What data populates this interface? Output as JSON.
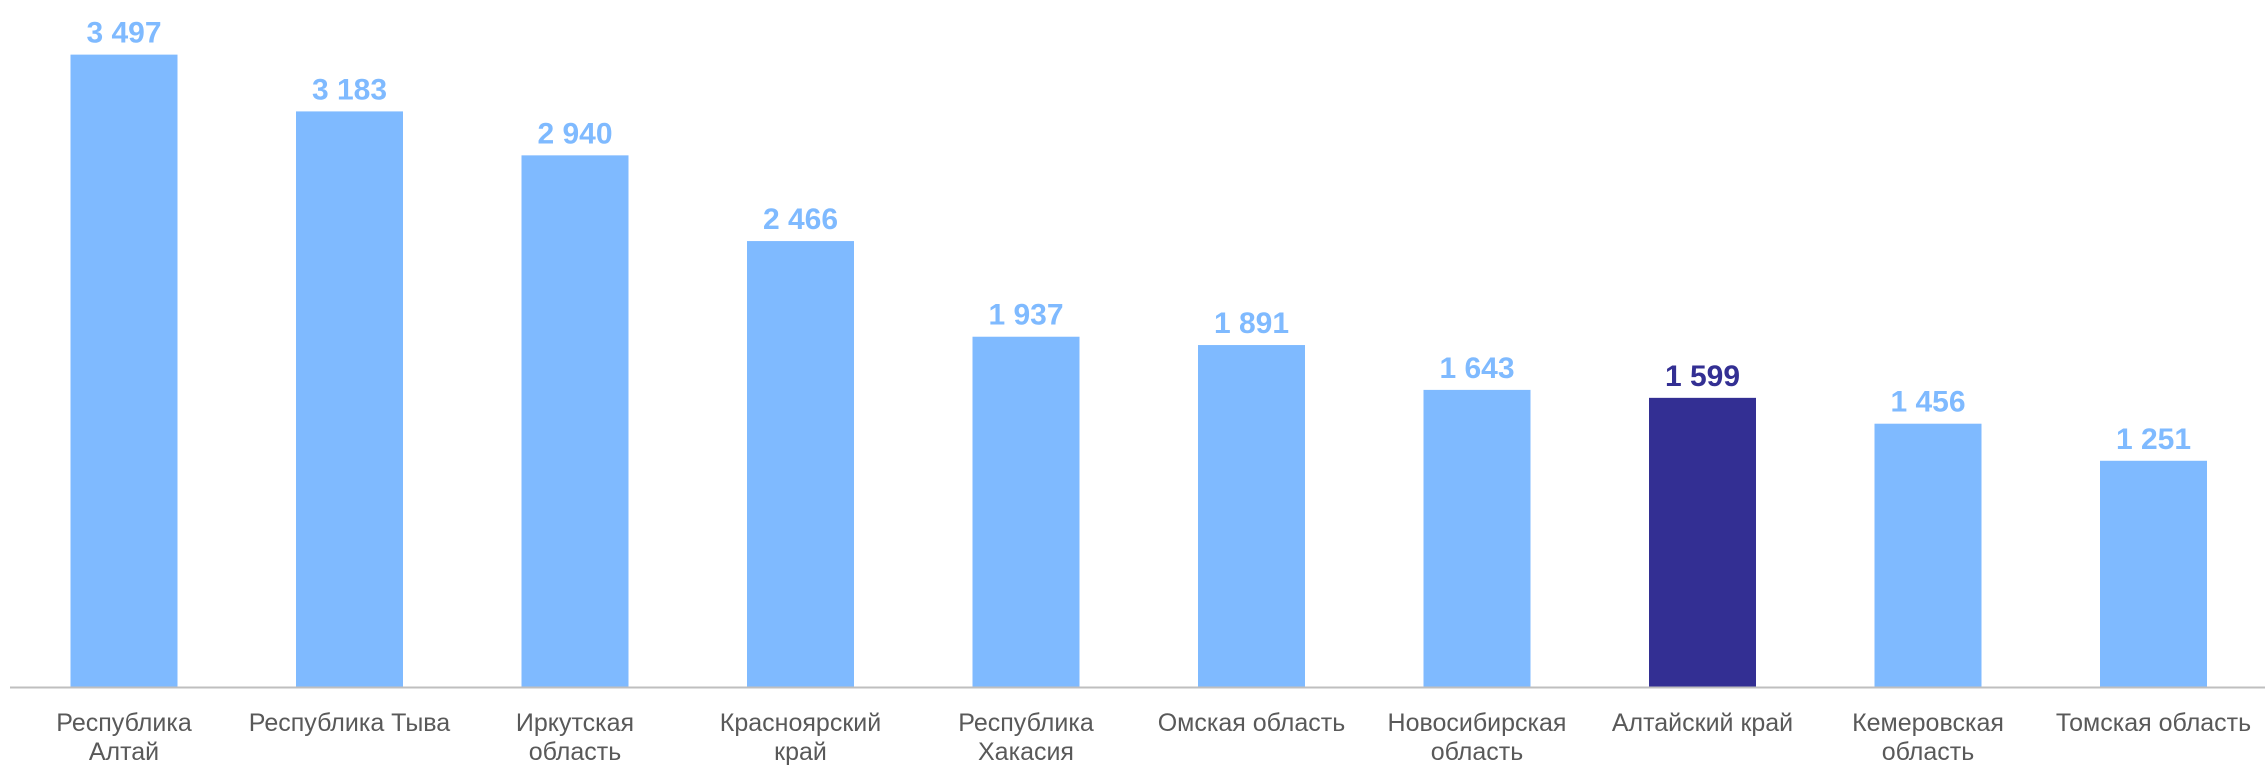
{
  "chart_data": {
    "type": "bar",
    "categories": [
      [
        "Республика",
        "Алтай"
      ],
      [
        "Республика Тыва"
      ],
      [
        "Иркутская",
        "область"
      ],
      [
        "Красноярский",
        "край"
      ],
      [
        "Республика",
        "Хакасия"
      ],
      [
        "Омская область"
      ],
      [
        "Новосибирская",
        "область"
      ],
      [
        "Алтайский край"
      ],
      [
        "Кемеровская",
        "область"
      ],
      [
        "Томская область"
      ]
    ],
    "values": [
      3497,
      3183,
      2940,
      2466,
      1937,
      1891,
      1643,
      1599,
      1456,
      1251
    ],
    "value_labels": [
      "3 497",
      "3 183",
      "2 940",
      "2 466",
      "1 937",
      "1 891",
      "1 643",
      "1 599",
      "1 456",
      "1 251"
    ],
    "highlight_index": 7,
    "ylim": [
      0,
      3600
    ],
    "grid": false,
    "legend": "none",
    "colors": {
      "bar": "#7fbaff",
      "highlight_bar": "#332f93",
      "label": "#7fbaff",
      "highlight_label": "#332f93",
      "category_text": "#595959",
      "axis": "#bfbfbf"
    }
  }
}
